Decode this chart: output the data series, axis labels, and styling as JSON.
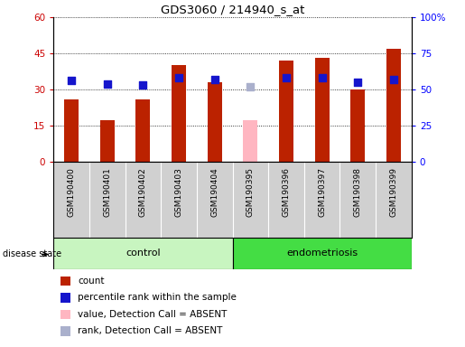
{
  "title": "GDS3060 / 214940_s_at",
  "samples": [
    "GSM190400",
    "GSM190401",
    "GSM190402",
    "GSM190403",
    "GSM190404",
    "GSM190395",
    "GSM190396",
    "GSM190397",
    "GSM190398",
    "GSM190399"
  ],
  "count_values": [
    26,
    17,
    26,
    40,
    33,
    null,
    42,
    43,
    30,
    47
  ],
  "count_absent": [
    null,
    null,
    null,
    null,
    null,
    17,
    null,
    null,
    null,
    null
  ],
  "percentile_values": [
    56,
    54,
    53,
    58,
    57,
    null,
    58,
    58,
    55,
    57
  ],
  "percentile_absent": [
    null,
    null,
    null,
    null,
    null,
    52,
    null,
    null,
    null,
    null
  ],
  "ylim_left": [
    0,
    60
  ],
  "ylim_right": [
    0,
    100
  ],
  "yticks_left": [
    0,
    15,
    30,
    45,
    60
  ],
  "yticks_right": [
    0,
    25,
    50,
    75,
    100
  ],
  "ytick_labels_left": [
    "0",
    "15",
    "30",
    "45",
    "60"
  ],
  "ytick_labels_right": [
    "0",
    "25",
    "50",
    "75",
    "100%"
  ],
  "bar_color": "#bb2200",
  "bar_absent_color": "#ffb6c1",
  "dot_color": "#1515cc",
  "dot_absent_color": "#aab0cc",
  "group_control_color": "#c8f5c0",
  "group_endo_color": "#44dd44",
  "bg_gray": "#d0d0d0",
  "plot_bg_color": "#ffffff",
  "legend_items": [
    {
      "color": "#bb2200",
      "label": "count"
    },
    {
      "color": "#1515cc",
      "label": "percentile rank within the sample"
    },
    {
      "color": "#ffb6c1",
      "label": "value, Detection Call = ABSENT"
    },
    {
      "color": "#aab0cc",
      "label": "rank, Detection Call = ABSENT"
    }
  ]
}
